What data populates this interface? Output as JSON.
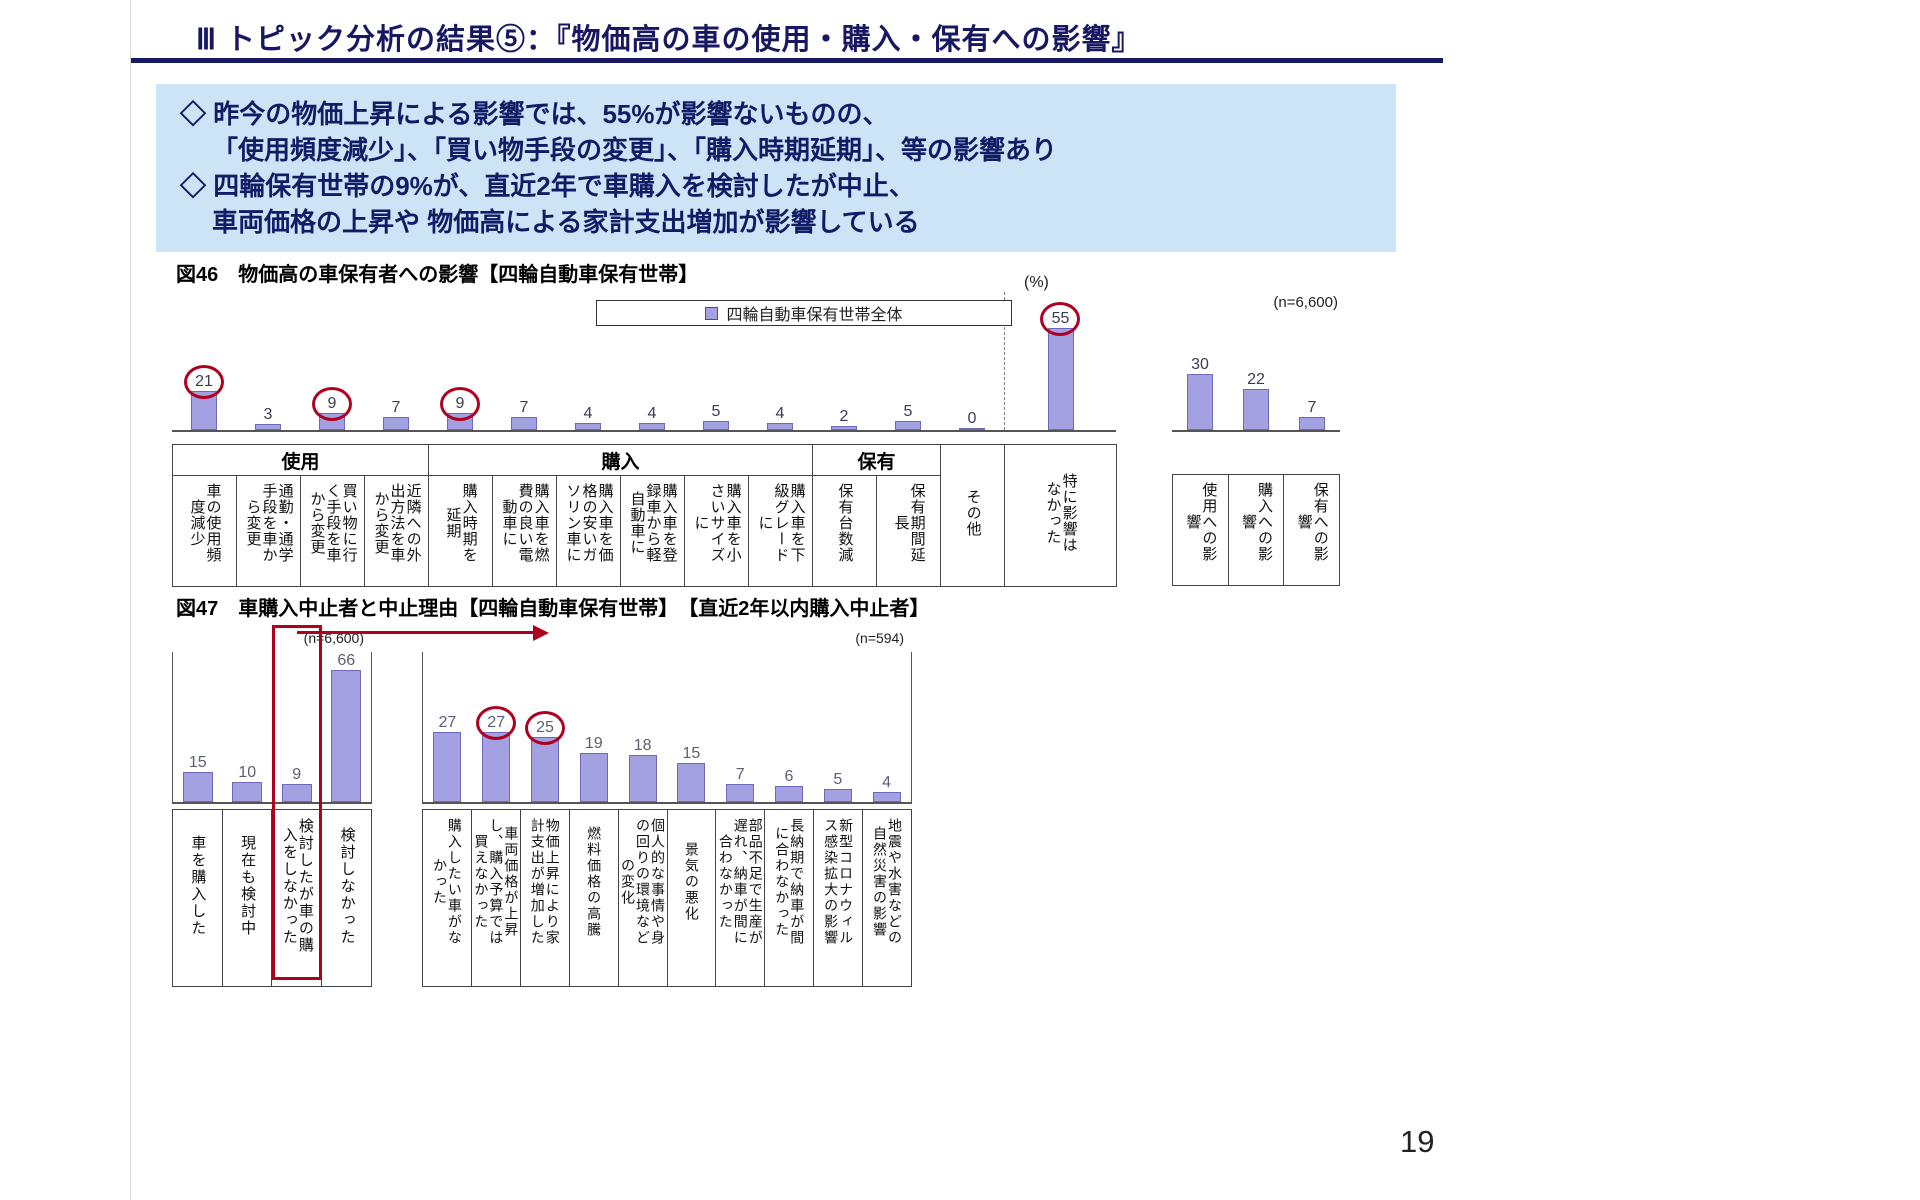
{
  "slide": {
    "title": "Ⅲ トピック分析の結果⑤：『物価高の車の使用・購入・保有への影響』",
    "page_number": "19"
  },
  "summary_box": {
    "bullet1_line1": "◇ 昨今の物価上昇による影響では、55%が影響ないものの、",
    "bullet1_line2": "「使用頻度減少」、「買い物手段の変更」、「購入時期延期」、等の影響あり",
    "bullet2_line1": "◇ 四輪保有世帯の9%が、直近2年で車購入を検討したが中止、",
    "bullet2_line2": "車両価格の上昇や 物価高による家計支出増加が影響している"
  },
  "colors": {
    "bar_fill": "#a3a1e2",
    "bar_border": "#6b69b8",
    "highlight_red": "#b00020",
    "title_navy": "#181862",
    "summary_bg": "#cde4f6"
  },
  "chart_data": [
    {
      "id": "fig46",
      "type": "bar",
      "title": "図46　物価高の車保有者への影響【四輪自動車保有世帯】",
      "unit_label": "(%)",
      "sample_label": "(n=6,600)",
      "legend": "四輪自動車保有世帯全体",
      "ylim": [
        0,
        60
      ],
      "groups": [
        {
          "label": "使用",
          "count": 4
        },
        {
          "label": "購入",
          "count": 6
        },
        {
          "label": "保有",
          "count": 2
        }
      ],
      "categories": [
        "車の使用頻度減少",
        "通勤・通学手段を車から変更",
        "買い物に行く手段を車から変更",
        "近隣への外出方法を車から変更",
        "購入時期を延期",
        "購入車を燃費の良い電動車に",
        "購入車を価格の安いガソリン車に",
        "購入車を登録車から軽自動車に",
        "購入車を小さいサイズに",
        "購入車を下級グレードに",
        "保有台数減",
        "保有期間延長",
        "その他",
        "特に影響はなかった"
      ],
      "values": [
        21,
        3,
        9,
        7,
        9,
        7,
        4,
        4,
        5,
        4,
        2,
        5,
        0,
        55
      ],
      "circled_indices": [
        0,
        2,
        4,
        13
      ],
      "summary_categories": [
        "使用への影響",
        "購入への影響",
        "保有への影響"
      ],
      "summary_values": [
        30,
        22,
        7
      ]
    },
    {
      "id": "fig47_left",
      "type": "bar",
      "title": "図47　車購入中止者と中止理由【四輪自動車保有世帯】　【直近2年以内購入中止者】",
      "sample_label": "(n=6,600)",
      "categories": [
        "車を購入した",
        "現在も検討中",
        "検討したが車の購入をしなかった",
        "検討しなかった"
      ],
      "values": [
        15,
        10,
        9,
        66
      ],
      "boxed_indices": [
        2
      ]
    },
    {
      "id": "fig47_right",
      "type": "bar",
      "sample_label": "(n=594)",
      "categories": [
        "購入したい車がなかった",
        "車両価格が上昇し、購入予算では買えなかった",
        "物価上昇により家計支出が増加した",
        "燃料価格の高騰",
        "個人的な事情や身の回りの環境などの変化",
        "景気の悪化",
        "部品不足で生産が遅れ、納車が間に合わなかった",
        "長納期で納車が間に合わなかった",
        "新型コロナウィルス感染拡大の影響",
        "地震や水害などの自然災害の影響"
      ],
      "values": [
        27,
        27,
        25,
        19,
        18,
        15,
        7,
        6,
        5,
        4
      ],
      "circled_indices": [
        1,
        2
      ]
    }
  ]
}
